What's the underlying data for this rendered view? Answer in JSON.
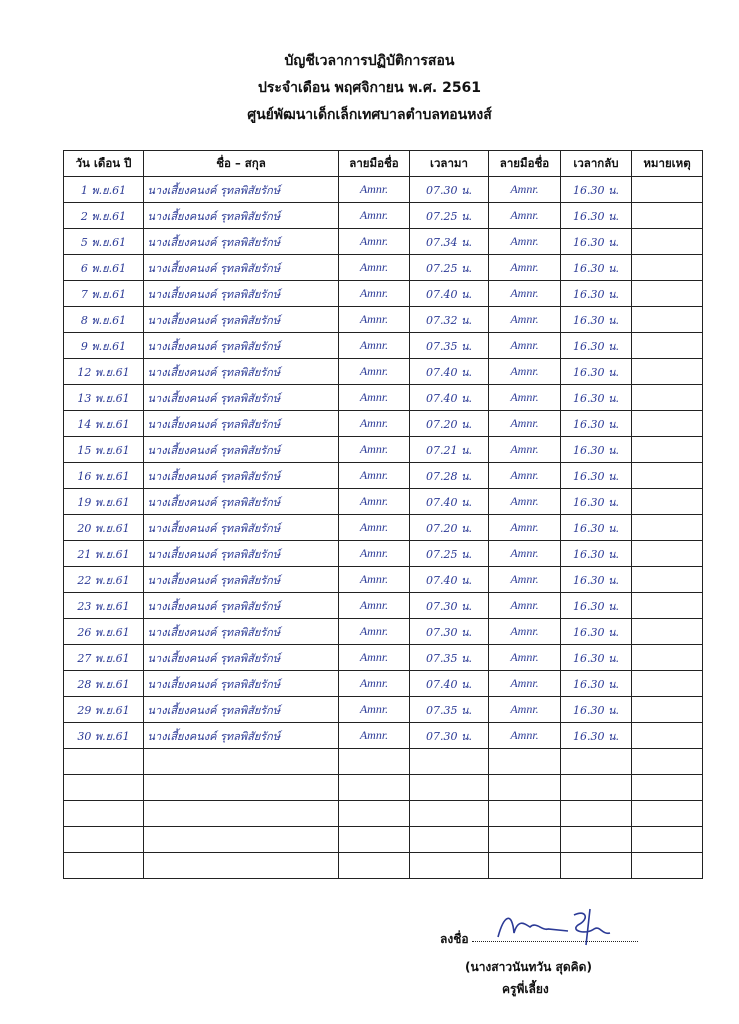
{
  "header": {
    "title": "บัญชีเวลาการปฏิบัติการสอน",
    "subtitle": "ประจำเดือน   พฤศจิกายน   พ.ศ.  2561",
    "organization": "ศูนย์พัฒนาเด็กเล็กเทศบาลตำบลทอนหงส์"
  },
  "table": {
    "columns": [
      "วัน เดือน ปี",
      "ชื่อ – สกุล",
      "ลายมือชื่อ",
      "เวลามา",
      "ลายมือชื่อ",
      "เวลากลับ",
      "หมายเหตุ"
    ],
    "name": "นางเสี้ยงคนงค์  รุทลพิสัยรักษ์",
    "signature": "Amnr.",
    "rows": [
      {
        "date": "1 พ.ย.61",
        "in": "07.30 น.",
        "out": "16.30 น."
      },
      {
        "date": "2 พ.ย.61",
        "in": "07.25 น.",
        "out": "16.30 น."
      },
      {
        "date": "5 พ.ย.61",
        "in": "07.34 น.",
        "out": "16.30 น."
      },
      {
        "date": "6 พ.ย.61",
        "in": "07.25 น.",
        "out": "16.30 น."
      },
      {
        "date": "7 พ.ย.61",
        "in": "07.40 น.",
        "out": "16.30 น."
      },
      {
        "date": "8 พ.ย.61",
        "in": "07.32 น.",
        "out": "16.30 น."
      },
      {
        "date": "9 พ.ย.61",
        "in": "07.35 น.",
        "out": "16.30 น."
      },
      {
        "date": "12 พ.ย.61",
        "in": "07.40 น.",
        "out": "16.30 น."
      },
      {
        "date": "13 พ.ย.61",
        "in": "07.40 น.",
        "out": "16.30 น."
      },
      {
        "date": "14 พ.ย.61",
        "in": "07.20 น.",
        "out": "16.30 น."
      },
      {
        "date": "15 พ.ย.61",
        "in": "07.21 น.",
        "out": "16.30 น."
      },
      {
        "date": "16 พ.ย.61",
        "in": "07.28 น.",
        "out": "16.30 น."
      },
      {
        "date": "19 พ.ย.61",
        "in": "07.40 น.",
        "out": "16.30 น."
      },
      {
        "date": "20 พ.ย.61",
        "in": "07.20 น.",
        "out": "16.30 น."
      },
      {
        "date": "21 พ.ย.61",
        "in": "07.25 น.",
        "out": "16.30 น."
      },
      {
        "date": "22 พ.ย.61",
        "in": "07.40 น.",
        "out": "16.30 น."
      },
      {
        "date": "23 พ.ย.61",
        "in": "07.30 น.",
        "out": "16.30 น."
      },
      {
        "date": "26 พ.ย.61",
        "in": "07.30 น.",
        "out": "16.30 น."
      },
      {
        "date": "27 พ.ย.61",
        "in": "07.35 น.",
        "out": "16.30 น."
      },
      {
        "date": "28 พ.ย.61",
        "in": "07.40 น.",
        "out": "16.30 น."
      },
      {
        "date": "29 พ.ย.61",
        "in": "07.35 น.",
        "out": "16.30 น."
      },
      {
        "date": "30 พ.ย.61",
        "in": "07.30 น.",
        "out": "16.30 น."
      }
    ]
  },
  "footer": {
    "sign_label": "ลงชื่อ",
    "signer_name": "(นางสาวนันทวัน  สุดคิด)",
    "signer_position": "ครูพี่เลี้ยง",
    "ink_color": "#2b3a96"
  }
}
